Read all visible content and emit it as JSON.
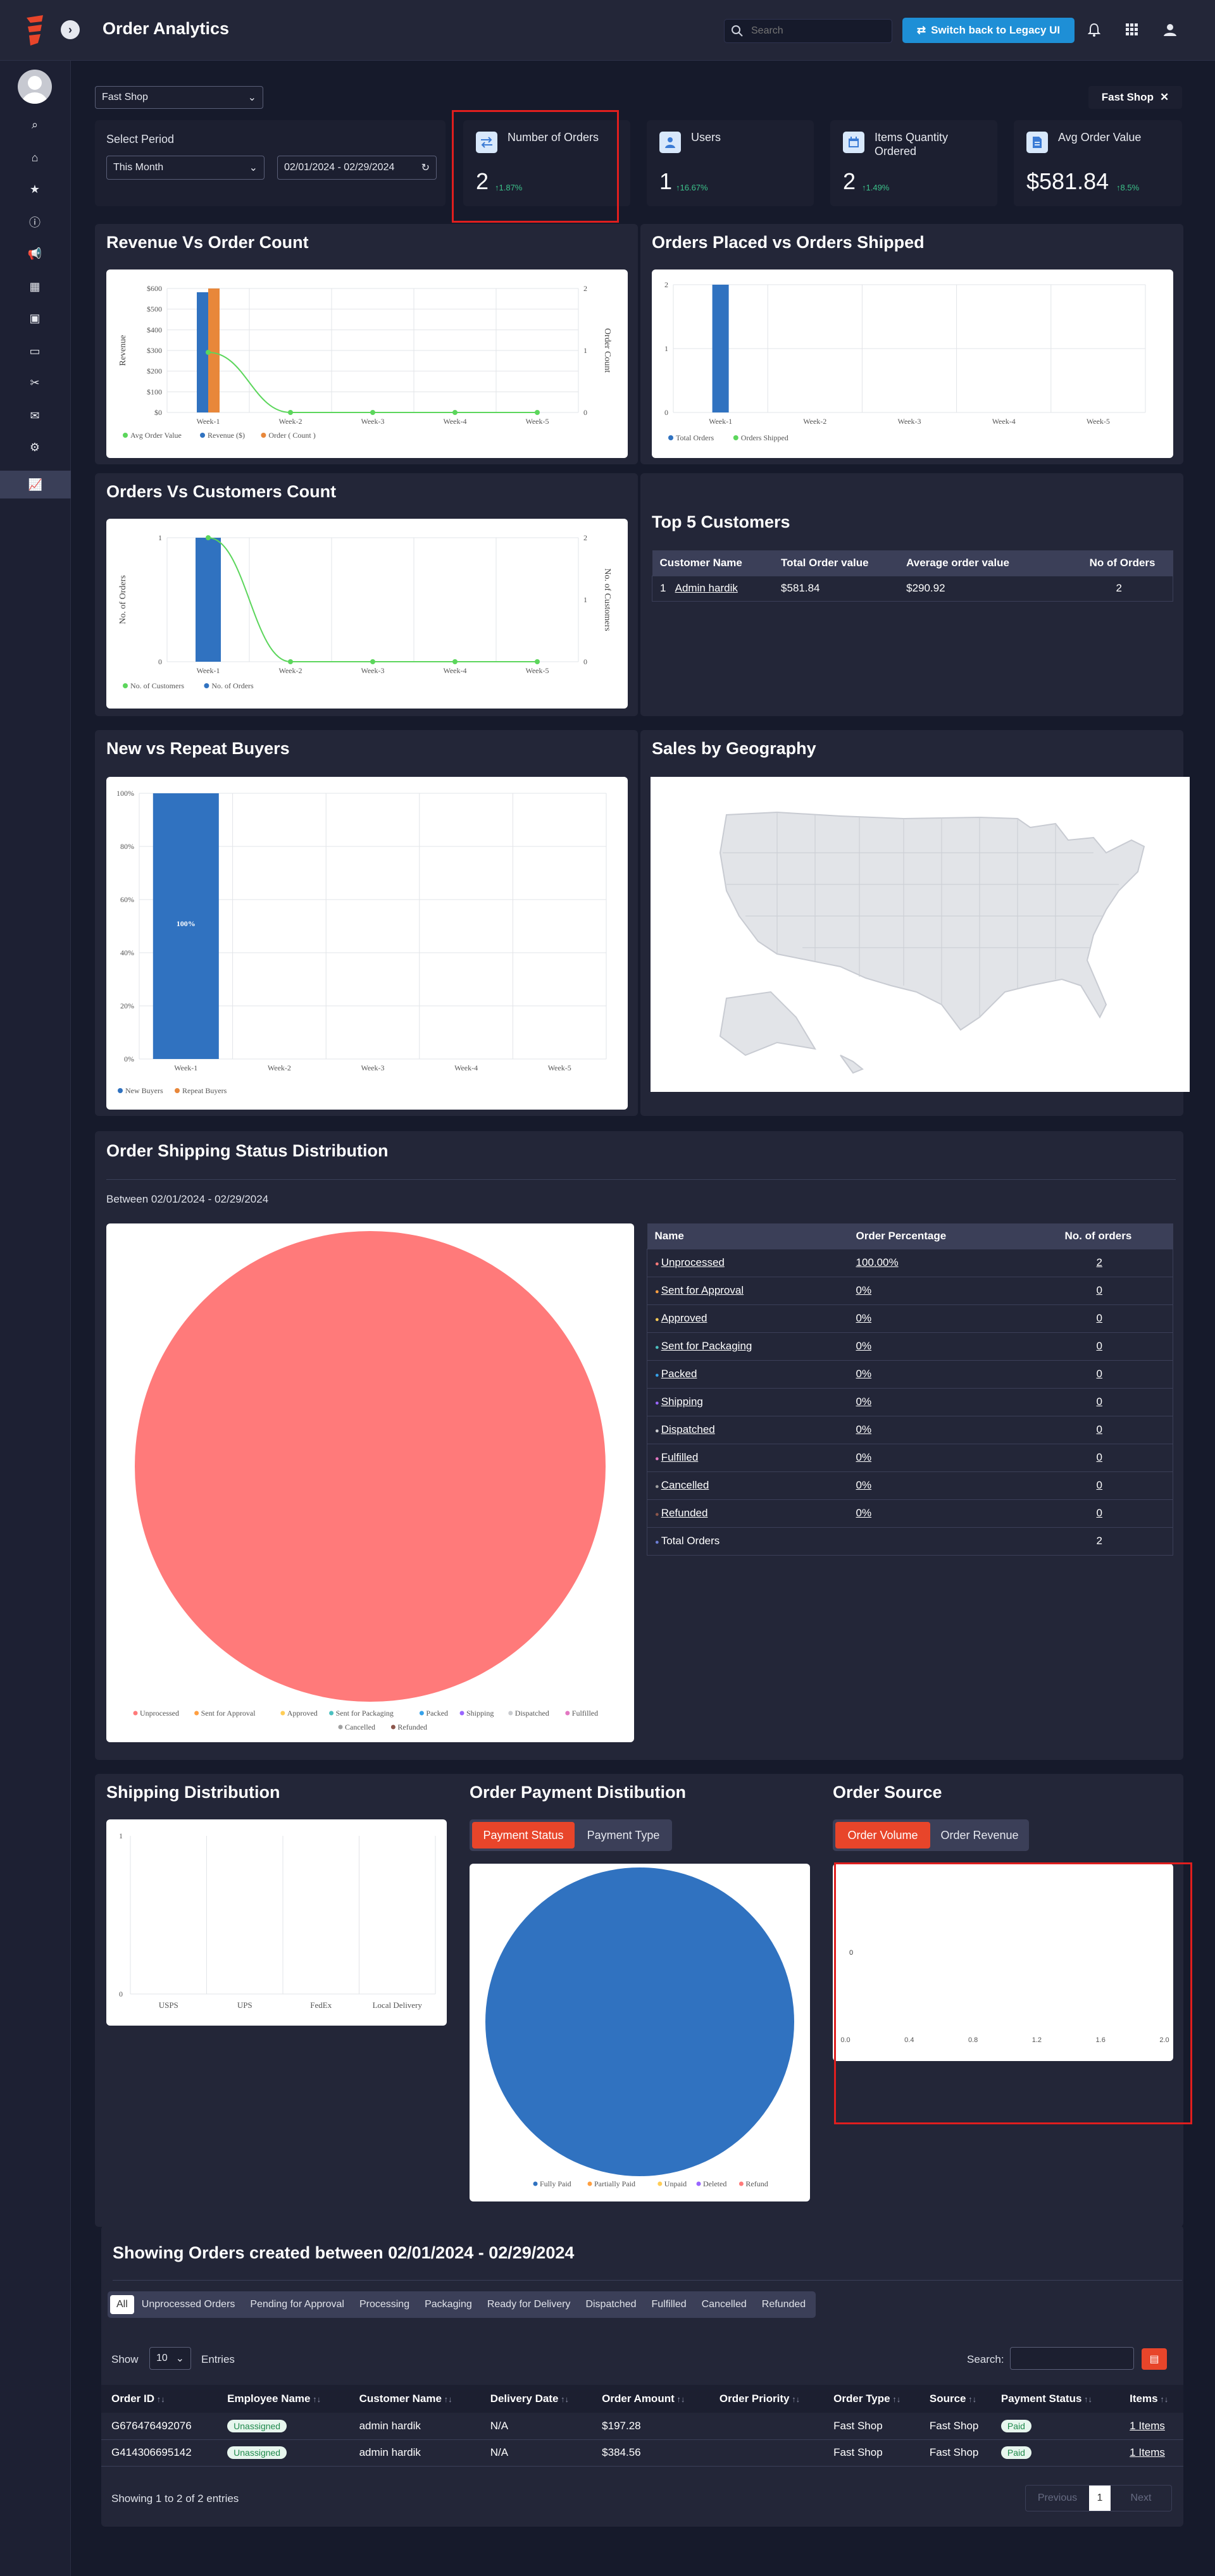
{
  "header": {
    "title": "Order Analytics",
    "search_placeholder": "Search",
    "legacy_label": "Switch back to Legacy UI"
  },
  "filters": {
    "shop": "Fast Shop",
    "shop_tag": "Fast Shop",
    "period_label": "Select Period",
    "period": "This Month",
    "date_range": "02/01/2024 - 02/29/2024"
  },
  "kpis": [
    {
      "title": "Number of Orders",
      "value": "2",
      "change": "↑1.87%"
    },
    {
      "title": "Users",
      "value": "1",
      "change": "↑16.67%"
    },
    {
      "title": "Items Quantity Ordered",
      "value": "2",
      "change": "↑1.49%"
    },
    {
      "title": "Avg Order Value",
      "value": "$581.84",
      "change": "↑8.5%"
    }
  ],
  "panels": {
    "revenue": "Revenue Vs Order Count",
    "placed": "Orders Placed vs Orders Shipped",
    "customers": "Orders Vs Customers Count",
    "top5": "Top 5 Customers",
    "buyers": "New vs Repeat Buyers",
    "geo": "Sales by Geography",
    "shipping_status": "Order Shipping Status Distribution",
    "shipping_between": "Between 02/01/2024 - 02/29/2024",
    "shipping_dist": "Shipping Distribution",
    "payment": "Order Payment Distibution",
    "source": "Order Source"
  },
  "top5": {
    "headers": [
      "Customer Name",
      "Total Order value",
      "Average order value",
      "No of Orders"
    ],
    "rows": [
      {
        "idx": "1",
        "name": "Admin hardik",
        "total": "$581.84",
        "avg": "$290.92",
        "count": "2"
      }
    ]
  },
  "status_table": {
    "headers": [
      "Name",
      "Order Percentage",
      "No. of orders"
    ],
    "rows": [
      {
        "name": "Unprocessed",
        "pct": "100.00%",
        "count": "2",
        "color": "#ff7a7a"
      },
      {
        "name": "Sent for Approval",
        "pct": "0%",
        "count": "0",
        "color": "#ff9f40"
      },
      {
        "name": "Approved",
        "pct": "0%",
        "count": "0",
        "color": "#ffcd56"
      },
      {
        "name": "Sent for Packaging",
        "pct": "0%",
        "count": "0",
        "color": "#4bc0c0"
      },
      {
        "name": "Packed",
        "pct": "0%",
        "count": "0",
        "color": "#36a2eb"
      },
      {
        "name": "Shipping",
        "pct": "0%",
        "count": "0",
        "color": "#9966ff"
      },
      {
        "name": "Dispatched",
        "pct": "0%",
        "count": "0",
        "color": "#c9cbcf"
      },
      {
        "name": "Fulfilled",
        "pct": "0%",
        "count": "0",
        "color": "#e377c2"
      },
      {
        "name": "Cancelled",
        "pct": "0%",
        "count": "0",
        "color": "#a0a0a0"
      },
      {
        "name": "Refunded",
        "pct": "0%",
        "count": "0",
        "color": "#8c564b"
      }
    ],
    "total_label": "Total Orders",
    "total": "2"
  },
  "payment_tabs": [
    "Payment Status",
    "Payment Type"
  ],
  "source_tabs": [
    "Order Volume",
    "Order Revenue"
  ],
  "orders": {
    "title": "Showing Orders created between 02/01/2024 - 02/29/2024",
    "tabs": [
      "All",
      "Unprocessed Orders",
      "Pending for Approval",
      "Processing",
      "Packaging",
      "Ready for Delivery",
      "Dispatched",
      "Fulfilled",
      "Cancelled",
      "Refunded"
    ],
    "show": "Show",
    "entries_value": "10",
    "entries": "Entries",
    "search": "Search:",
    "headers": [
      "Order ID",
      "Employee Name",
      "Customer Name",
      "Delivery Date",
      "Order Amount",
      "Order Priority",
      "Order Type",
      "Source",
      "Payment Status",
      "Items"
    ],
    "rows": [
      {
        "id": "G676476492076",
        "emp": "Unassigned",
        "cust": "admin hardik",
        "date": "N/A",
        "amount": "$197.28",
        "type": "Fast Shop",
        "source": "Fast Shop",
        "pay": "Paid",
        "items": "1 Items"
      },
      {
        "id": "G414306695142",
        "emp": "Unassigned",
        "cust": "admin hardik",
        "date": "N/A",
        "amount": "$384.56",
        "type": "Fast Shop",
        "source": "Fast Shop",
        "pay": "Paid",
        "items": "1 Items"
      }
    ],
    "footer": "Showing 1 to 2 of 2 entries",
    "prev": "Previous",
    "page": "1",
    "next": "Next"
  },
  "chart_data": [
    {
      "type": "bar",
      "title": "Revenue Vs Order Count",
      "categories": [
        "Week-1",
        "Week-2",
        "Week-3",
        "Week-4",
        "Week-5"
      ],
      "ylabel": "Revenue",
      "y2label": "Order Count",
      "y_ticks": [
        "$0",
        "$100",
        "$200",
        "$300",
        "$400",
        "$500",
        "$600"
      ],
      "y2_ticks": [
        "0",
        "1",
        "2"
      ],
      "ylim": [
        0,
        600
      ],
      "y2lim": [
        0,
        2
      ],
      "series": [
        {
          "name": "Avg Order Value",
          "kind": "line",
          "axis": "y",
          "values": [
            290.92,
            0,
            0,
            0,
            0
          ],
          "color": "#5cd65c"
        },
        {
          "name": "Revenue ($)",
          "kind": "bar",
          "axis": "y",
          "values": [
            581.84,
            0,
            0,
            0,
            0
          ],
          "color": "#3072c0"
        },
        {
          "name": "Order ( Count )",
          "kind": "bar",
          "axis": "y2",
          "values": [
            2,
            0,
            0,
            0,
            0
          ],
          "color": "#e8873a"
        }
      ]
    },
    {
      "type": "bar",
      "title": "Orders Placed vs Orders Shipped",
      "categories": [
        "Week-1",
        "Week-2",
        "Week-3",
        "Week-4",
        "Week-5"
      ],
      "y_ticks": [
        "0",
        "1",
        "2"
      ],
      "ylim": [
        0,
        2
      ],
      "series": [
        {
          "name": "Total Orders",
          "values": [
            2,
            0,
            0,
            0,
            0
          ],
          "color": "#3072c0"
        },
        {
          "name": "Orders Shipped",
          "values": [
            0,
            0,
            0,
            0,
            0
          ],
          "color": "#5cd65c"
        }
      ]
    },
    {
      "type": "bar",
      "title": "Orders Vs Customers Count",
      "categories": [
        "Week-1",
        "Week-2",
        "Week-3",
        "Week-4",
        "Week-5"
      ],
      "ylabel": "No. of Orders",
      "y2label": "No. of Customers",
      "y_ticks": [
        "0",
        "1"
      ],
      "y2_ticks": [
        "0",
        "1",
        "2"
      ],
      "ylim": [
        0,
        1
      ],
      "y2lim": [
        0,
        2
      ],
      "series": [
        {
          "name": "No. of Customers",
          "kind": "line",
          "axis": "y",
          "values": [
            1,
            0,
            0,
            0,
            0
          ],
          "color": "#5cd65c"
        },
        {
          "name": "No. of Orders",
          "kind": "bar",
          "axis": "y2",
          "values": [
            2,
            0,
            0,
            0,
            0
          ],
          "color": "#3072c0"
        }
      ]
    },
    {
      "type": "bar",
      "title": "New vs Repeat Buyers",
      "categories": [
        "Week-1",
        "Week-2",
        "Week-3",
        "Week-4",
        "Week-5"
      ],
      "y_ticks": [
        "0%",
        "20%",
        "40%",
        "60%",
        "80%",
        "100%"
      ],
      "ylim": [
        0,
        100
      ],
      "bar_label": "100%",
      "series": [
        {
          "name": "New Buyers",
          "values": [
            100,
            0,
            0,
            0,
            0
          ],
          "color": "#3072c0"
        },
        {
          "name": "Repeat Buyers",
          "values": [
            0,
            0,
            0,
            0,
            0
          ],
          "color": "#e8873a"
        }
      ]
    },
    {
      "type": "pie",
      "title": "Order Shipping Status Distribution",
      "labels": [
        "Unprocessed",
        "Sent for Approval",
        "Approved",
        "Sent for Packaging",
        "Packed",
        "Shipping",
        "Dispatched",
        "Fulfilled",
        "Cancelled",
        "Refunded"
      ],
      "values": [
        100,
        0,
        0,
        0,
        0,
        0,
        0,
        0,
        0,
        0
      ]
    },
    {
      "type": "bar",
      "title": "Shipping Distribution",
      "categories": [
        "USPS",
        "UPS",
        "FedEx",
        "Local Delivery"
      ],
      "values": [
        0,
        0,
        0,
        0
      ],
      "y_ticks": [
        "0",
        "1"
      ],
      "ylim": [
        0,
        1
      ]
    },
    {
      "type": "pie",
      "title": "Order Payment Distibution",
      "labels": [
        "Fully Paid",
        "Partially Paid",
        "Unpaid",
        "Deleted",
        "Refund"
      ],
      "values": [
        100,
        0,
        0,
        0,
        0
      ],
      "colors": [
        "#3072c0",
        "#ff9f40",
        "#ffcd56",
        "#9966ff",
        "#ff7a7a"
      ]
    },
    {
      "type": "bar",
      "title": "Order Source",
      "x_ticks": [
        "0.0",
        "0.4",
        "0.8",
        "1.2",
        "1.6",
        "2.0"
      ],
      "y_label_tick": "0",
      "xlim": [
        0,
        2
      ]
    }
  ]
}
